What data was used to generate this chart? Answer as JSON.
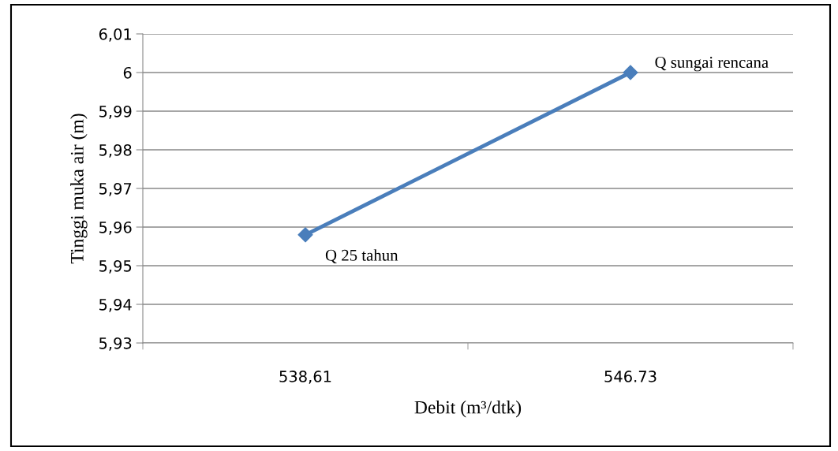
{
  "chart_data": {
    "type": "line",
    "xlabel": "Debit (m³/dtk)",
    "ylabel": "Tinggi muka air (m)",
    "categories": [
      "538,61",
      "546.73"
    ],
    "series": [
      {
        "color": "#4a7ebb",
        "values": [
          5.958,
          6.0
        ]
      }
    ],
    "ylim": [
      5.93,
      6.01
    ],
    "yticks": [
      {
        "value": 5.93,
        "label": "5,93"
      },
      {
        "value": 5.94,
        "label": "5,94"
      },
      {
        "value": 5.95,
        "label": "5,95"
      },
      {
        "value": 5.96,
        "label": "5,96"
      },
      {
        "value": 5.97,
        "label": "5,97"
      },
      {
        "value": 5.98,
        "label": "5,98"
      },
      {
        "value": 5.99,
        "label": "5,99"
      },
      6,
      {
        "value": 6.01,
        "label": "6,01"
      }
    ],
    "grid": "y",
    "marker": "diamond",
    "line_style": "solid",
    "legend": false,
    "annotations": [
      {
        "text": "Q 25 tahun",
        "x": "538,61",
        "y": 5.958
      },
      {
        "text": "Q sungai rencana",
        "x": "546.73",
        "y": 6.0
      }
    ]
  }
}
